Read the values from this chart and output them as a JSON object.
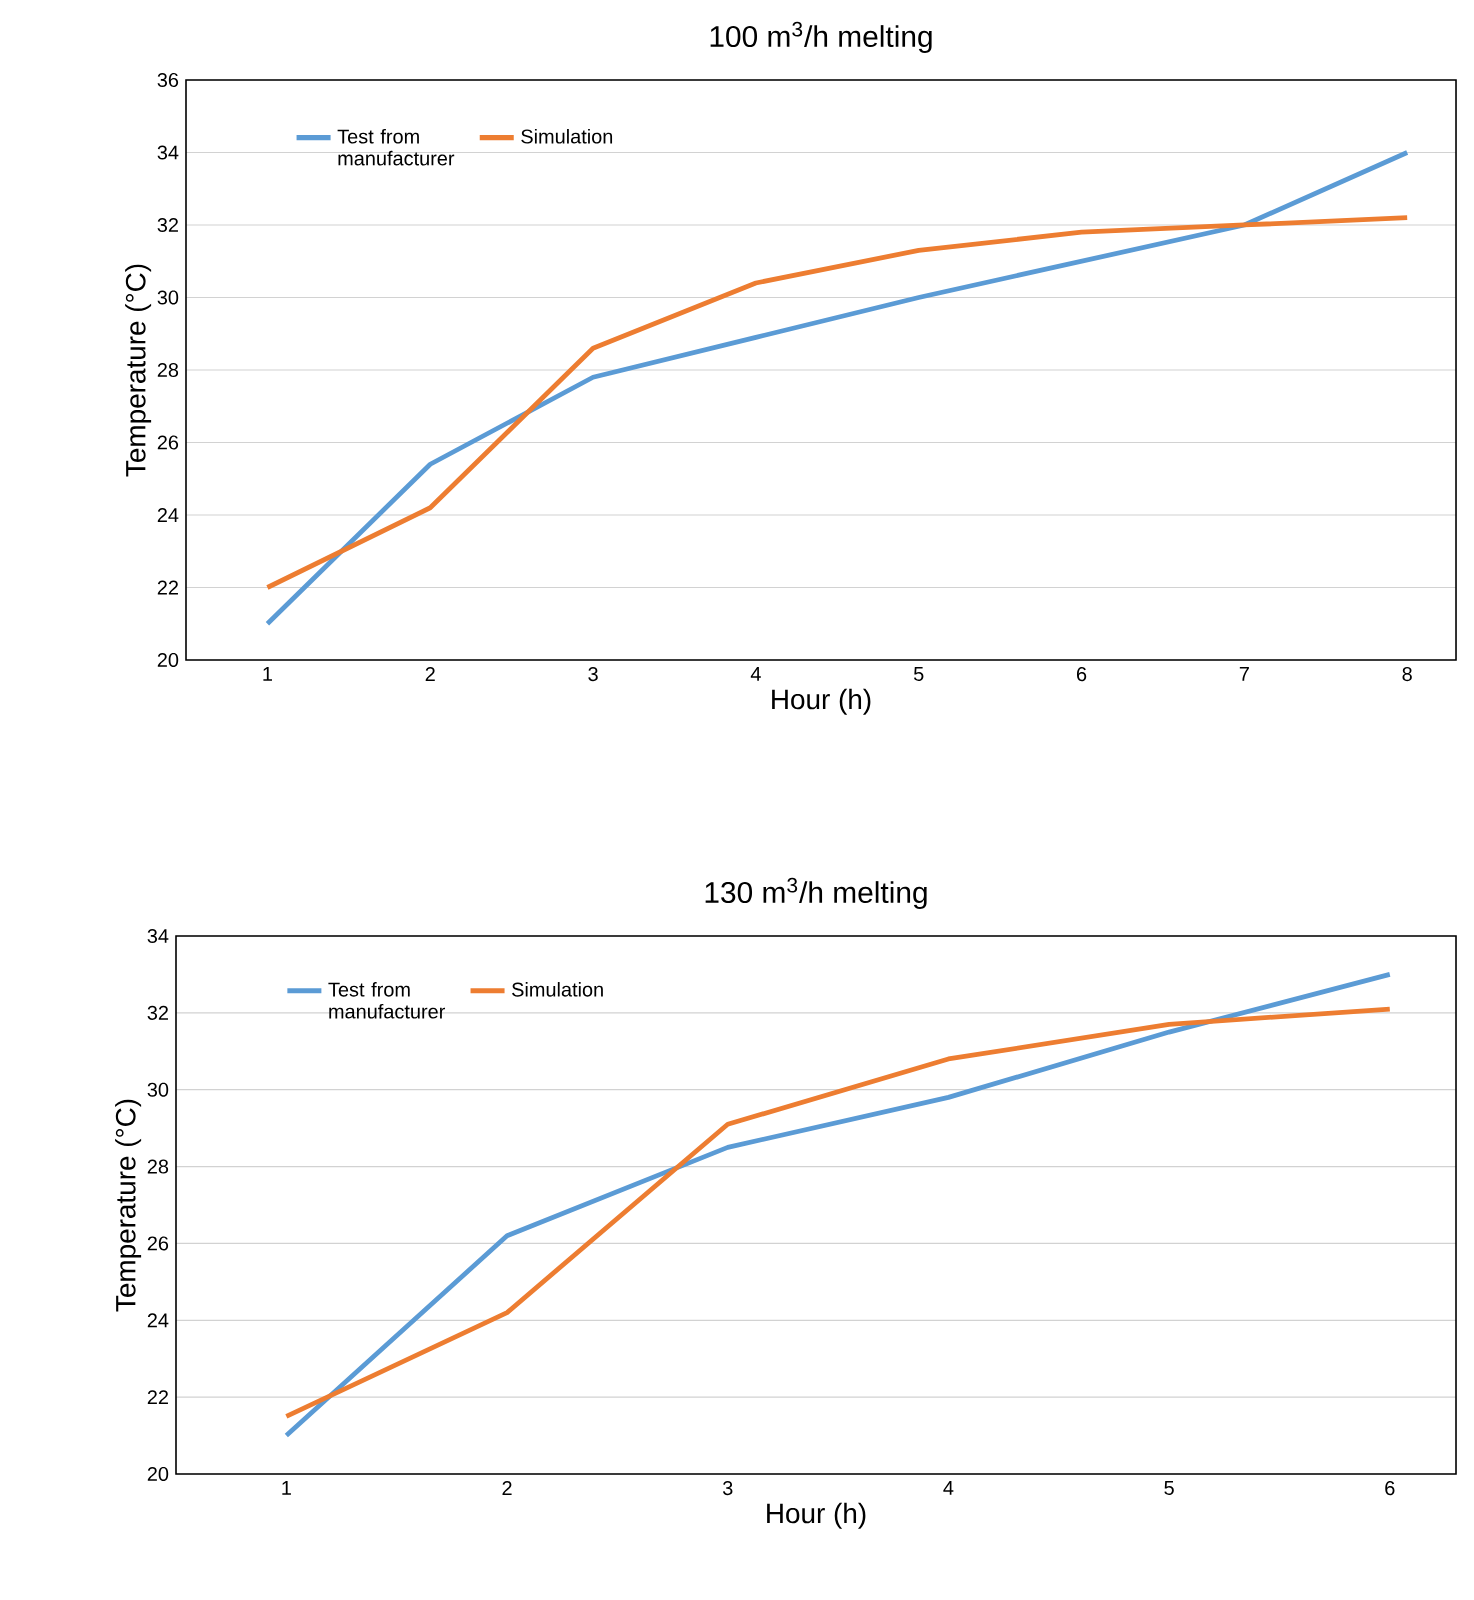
{
  "chart_data": [
    {
      "type": "line",
      "title": "100 m$^{3}$/h melting",
      "xlabel": "Hour (h)",
      "ylabel": "Temperature (°C)",
      "categories": [
        "1",
        "2",
        "3",
        "4",
        "5",
        "6",
        "7",
        "8"
      ],
      "ylim": [
        20,
        36
      ],
      "yticks": [
        20,
        22,
        24,
        26,
        28,
        30,
        32,
        34,
        36
      ],
      "grid": "y",
      "legend": "top left",
      "series": [
        {
          "name": "Test from manufacturer",
          "color": "#5b9bd5",
          "values": [
            21,
            25.4,
            27.8,
            28.9,
            30,
            31,
            32,
            34
          ]
        },
        {
          "name": "Simulation",
          "color": "#ed7d31",
          "values": [
            22,
            24.2,
            28.6,
            30.4,
            31.3,
            31.8,
            32,
            32.2
          ]
        }
      ]
    },
    {
      "type": "line",
      "title": "130 m$^{3}$/h melting",
      "xlabel": "Hour (h)",
      "ylabel": "Temperature (°C)",
      "categories": [
        "1",
        "2",
        "3",
        "4",
        "5",
        "6"
      ],
      "ylim": [
        20,
        34
      ],
      "yticks": [
        20,
        22,
        24,
        26,
        28,
        30,
        32,
        34
      ],
      "grid": "y",
      "legend": "top left",
      "series": [
        {
          "name": "Test from manufacturer",
          "color": "#5b9bd5",
          "values": [
            21,
            26.2,
            28.5,
            29.8,
            31.5,
            33
          ]
        },
        {
          "name": "Simulation",
          "color": "#ed7d31",
          "values": [
            21.5,
            24.2,
            29.1,
            30.8,
            31.7,
            32.1
          ]
        }
      ]
    }
  ]
}
